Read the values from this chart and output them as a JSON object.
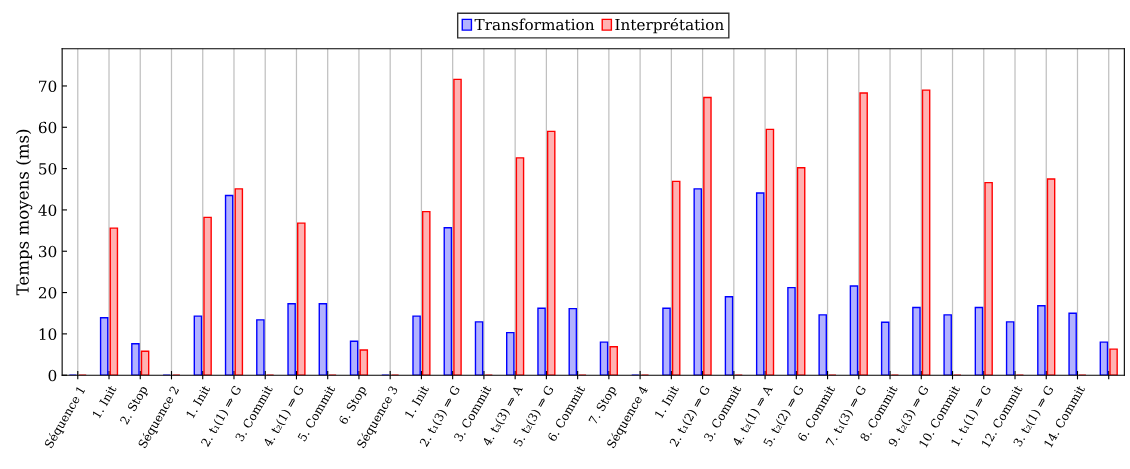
{
  "chart_data": {
    "type": "bar",
    "ylabel": "Temps moyens (ms)",
    "categories": [
      "Séquence 1",
      "1. Init",
      "2. Stop",
      "Séquence 2",
      "1. Init",
      "2. t₁(1) ⇒ G",
      "3. Commit",
      "4. t₂(1) ⇒ G",
      "5. Commit",
      "6. Stop",
      "Séquence 3",
      "1. Init",
      "2. t₁(3) ⇒ G",
      "3. Commit",
      "4. t₃(3) ⇒ A",
      "5. t₂(3) ⇒ G",
      "6. Commit",
      "7. Stop",
      "Séquence 4",
      "1. Init",
      "2. t₁(2) ⇒ G",
      "3. Commit",
      "4. t₂(1) ⇒ A",
      "5. t₂(2) ⇒ G",
      "6. Commit",
      "7. t₁(3) ⇒ G",
      "8. Commit",
      "9. t₂(3) ⇒ G",
      "10. Commit",
      "1. t₁(1) ⇒ G",
      "12. Commit",
      "3. t₂(1) ⇒ G",
      "14. Commit",
      null
    ],
    "series": [
      {
        "name": "Transformation",
        "color": "#0000ff",
        "values": [
          0,
          13.9,
          7.6,
          0,
          14.3,
          43.5,
          13.4,
          17.3,
          17.3,
          8.2,
          0,
          14.3,
          35.7,
          12.9,
          10.3,
          16.2,
          16.1,
          8.0,
          0,
          16.2,
          45.1,
          19.0,
          44.1,
          21.2,
          14.6,
          21.6,
          12.8,
          16.4,
          14.6,
          16.4,
          12.9,
          16.8,
          15.0,
          8.0
        ]
      },
      {
        "name": "Interprétation",
        "color": "#ff0000",
        "values": [
          0,
          35.6,
          5.8,
          0,
          38.2,
          45.1,
          0,
          36.8,
          0,
          6.1,
          0,
          39.6,
          71.6,
          0,
          52.6,
          59.0,
          0,
          6.9,
          0,
          46.9,
          67.2,
          0,
          59.5,
          50.2,
          0,
          68.3,
          0,
          69.0,
          0,
          46.6,
          0,
          47.5,
          0,
          6.3
        ]
      }
    ],
    "ylim": [
      0,
      79
    ],
    "yticks": [
      0,
      10,
      20,
      30,
      40,
      50,
      60,
      70
    ],
    "grid": "x",
    "legend": "top"
  }
}
